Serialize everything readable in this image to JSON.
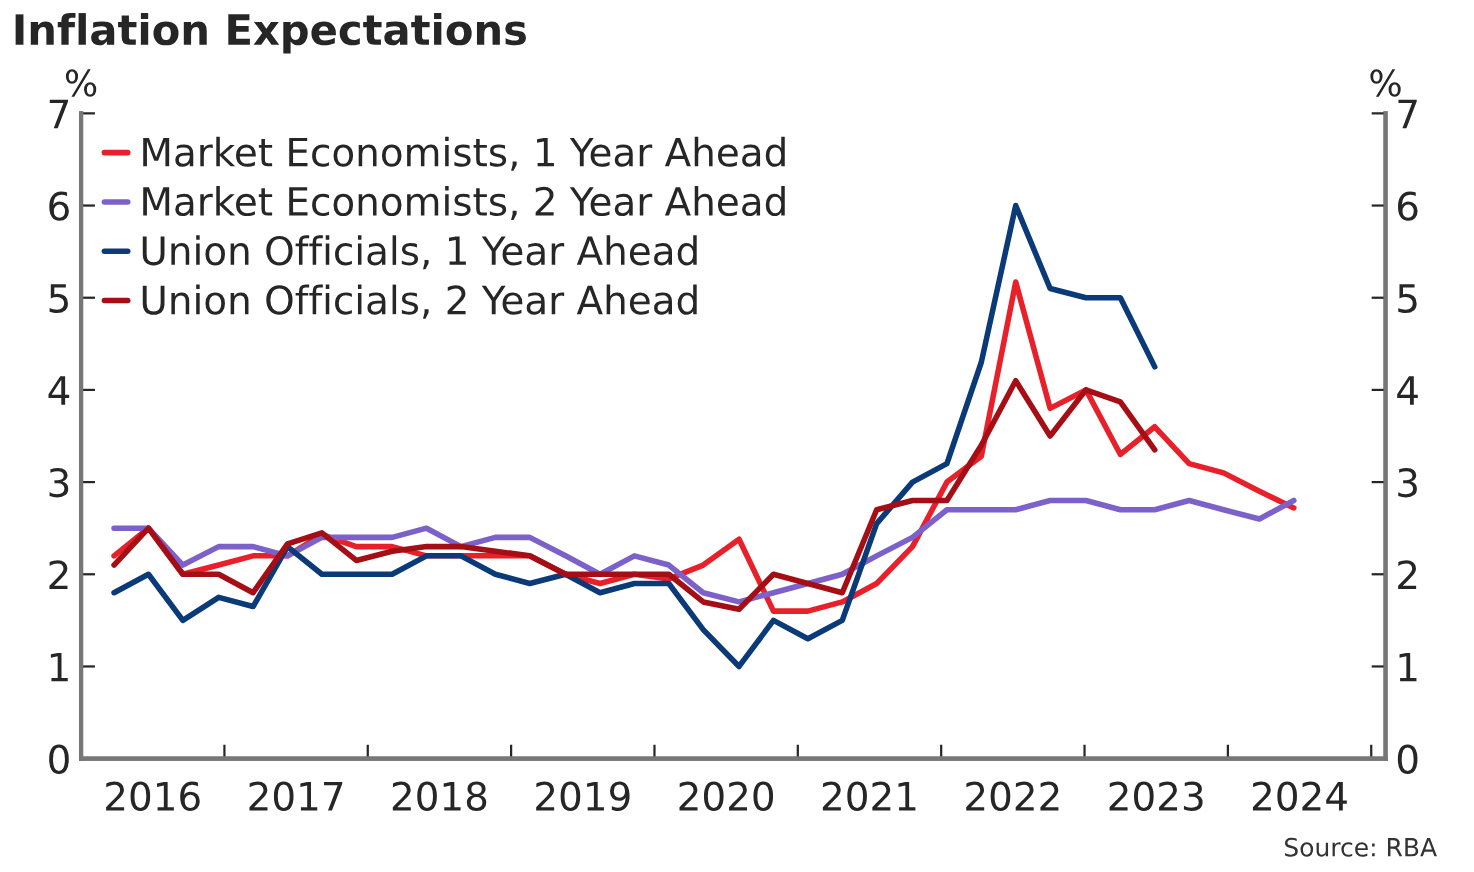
{
  "chart_data": {
    "type": "line",
    "title": "Inflation Expectations",
    "ylabel": "%",
    "y2label": "%",
    "x": [
      2016.23,
      2016.47,
      2016.71,
      2016.96,
      2017.2,
      2017.44,
      2017.68,
      2017.92,
      2018.17,
      2018.41,
      2018.65,
      2018.89,
      2019.13,
      2019.38,
      2019.62,
      2019.86,
      2020.1,
      2020.34,
      2020.59,
      2020.83,
      2021.07,
      2021.31,
      2021.55,
      2021.8,
      2022.04,
      2022.28,
      2022.52,
      2022.76,
      2023.01,
      2023.25,
      2023.49,
      2023.73,
      2023.97,
      2024.22,
      2024.46
    ],
    "series": [
      {
        "name": "Market Economists, 1 Year Ahead",
        "color": "#e8202a",
        "values": [
          2.2,
          2.5,
          2.0,
          2.1,
          2.2,
          2.2,
          2.43,
          2.3,
          2.3,
          2.2,
          2.2,
          2.2,
          2.2,
          2.0,
          1.9,
          2.0,
          1.95,
          2.1,
          2.38,
          1.6,
          1.6,
          1.7,
          1.9,
          2.3,
          3.0,
          3.28,
          5.17,
          3.8,
          4.0,
          3.3,
          3.6,
          3.2,
          3.1,
          2.9,
          2.72
        ]
      },
      {
        "name": "Market Economists, 2 Year Ahead",
        "color": "#7b61c9",
        "values": [
          2.5,
          2.5,
          2.1,
          2.3,
          2.3,
          2.2,
          2.4,
          2.4,
          2.4,
          2.5,
          2.3,
          2.4,
          2.4,
          2.2,
          2.0,
          2.2,
          2.1,
          1.8,
          1.7,
          1.8,
          1.9,
          2.0,
          2.2,
          2.4,
          2.7,
          2.7,
          2.7,
          2.8,
          2.8,
          2.7,
          2.7,
          2.8,
          2.7,
          2.6,
          2.8
        ]
      },
      {
        "name": "Union Officials, 1 Year Ahead",
        "color": "#0a3a78",
        "values": [
          1.8,
          2.0,
          1.5,
          1.75,
          1.65,
          2.3,
          2.0,
          2.0,
          2.0,
          2.2,
          2.2,
          2.0,
          1.9,
          2.0,
          1.8,
          1.9,
          1.9,
          1.4,
          1.0,
          1.5,
          1.3,
          1.5,
          2.55,
          3.0,
          3.2,
          4.3,
          6.0,
          5.1,
          5.0,
          5.0,
          4.25,
          null,
          null,
          null,
          null
        ]
      },
      {
        "name": "Union Officials, 2 Year Ahead",
        "color": "#a50e15",
        "values": [
          2.1,
          2.5,
          2.0,
          2.0,
          1.8,
          2.33,
          2.45,
          2.15,
          2.25,
          2.3,
          2.3,
          2.25,
          2.2,
          2.0,
          2.0,
          2.0,
          2.0,
          1.7,
          1.62,
          2.0,
          1.9,
          1.8,
          2.7,
          2.8,
          2.8,
          3.4,
          4.1,
          3.5,
          4.0,
          3.87,
          3.35,
          null,
          null,
          null,
          null
        ]
      }
    ],
    "xlim": [
      2016,
      2025.1
    ],
    "xticks": [
      {
        "value": 2016,
        "label": null
      },
      {
        "value": 2016.5,
        "label": "2016"
      },
      {
        "value": 2017,
        "label": null
      },
      {
        "value": 2017.5,
        "label": "2017"
      },
      {
        "value": 2018,
        "label": null
      },
      {
        "value": 2018.5,
        "label": "2018"
      },
      {
        "value": 2019,
        "label": null
      },
      {
        "value": 2019.5,
        "label": "2019"
      },
      {
        "value": 2020,
        "label": null
      },
      {
        "value": 2020.5,
        "label": "2020"
      },
      {
        "value": 2021,
        "label": null
      },
      {
        "value": 2021.5,
        "label": "2021"
      },
      {
        "value": 2022,
        "label": null
      },
      {
        "value": 2022.5,
        "label": "2022"
      },
      {
        "value": 2023,
        "label": null
      },
      {
        "value": 2023.5,
        "label": "2023"
      },
      {
        "value": 2024,
        "label": null
      },
      {
        "value": 2024.5,
        "label": "2024"
      },
      {
        "value": 2025,
        "label": null
      }
    ],
    "ylim": [
      0,
      7
    ],
    "yticks": [
      0,
      1,
      2,
      3,
      4,
      5,
      6,
      7
    ],
    "y2lim": [
      0,
      7
    ],
    "y2ticks": [
      0,
      1,
      2,
      3,
      4,
      5,
      6,
      7
    ],
    "grid": false,
    "legend": "top left",
    "marker": "none",
    "line_style": "solid",
    "annotations": [
      "Source: RBA"
    ]
  }
}
